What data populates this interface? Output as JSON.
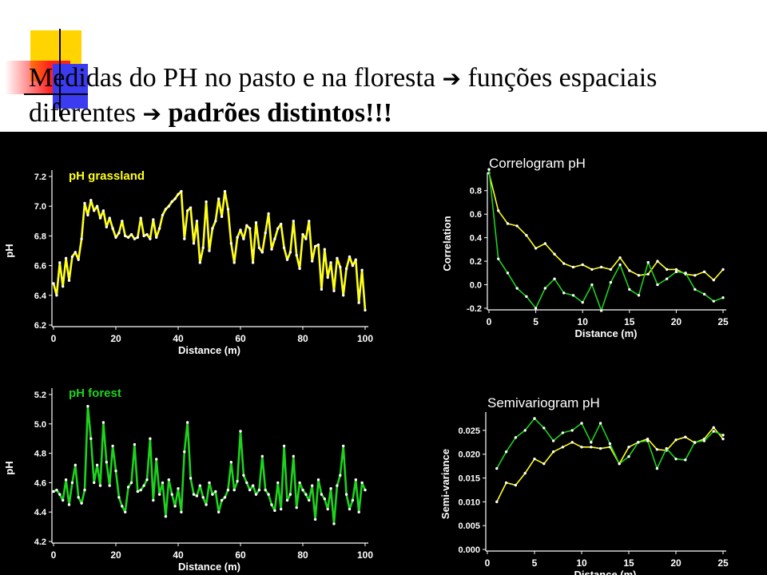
{
  "slide": {
    "title_part1": "Medidas do PH no pasto e na floresta",
    "arrow_glyph": "➔",
    "title_part2": "funções espaciais diferentes",
    "title_bold": "padrões distintos!!!"
  },
  "colors": {
    "grassland": "#ffff1e",
    "forest": "#1ed21e",
    "panel_background": "#000000",
    "axis": "#ffffff",
    "deco_yellow": "#ffd400",
    "deco_red": "#ff2020",
    "deco_blue": "#3b3bf0"
  },
  "chart_data": [
    {
      "id": "grassland",
      "type": "line",
      "title": "pH grassland",
      "xlabel": "Distance (m)",
      "ylabel": "pH",
      "xlim": [
        0,
        100
      ],
      "ylim": [
        6.2,
        7.2
      ],
      "xticks": [
        "0",
        "20",
        "40",
        "60",
        "80",
        "100"
      ],
      "yticks": [
        "6.2",
        "6.4",
        "6.6",
        "6.8",
        "7.0",
        "7.2"
      ],
      "grid": false,
      "series": [
        {
          "color": "#ffff1e",
          "x": [
            0,
            1,
            2,
            3,
            4,
            5,
            6,
            7,
            8,
            9,
            10,
            11,
            12,
            13,
            14,
            15,
            16,
            17,
            18,
            19,
            20,
            21,
            22,
            23,
            24,
            25,
            26,
            27,
            28,
            29,
            30,
            31,
            32,
            33,
            34,
            35,
            36,
            37,
            38,
            39,
            40,
            41,
            42,
            43,
            44,
            45,
            46,
            47,
            48,
            49,
            50,
            51,
            52,
            53,
            54,
            55,
            56,
            57,
            58,
            59,
            60,
            61,
            62,
            63,
            64,
            65,
            66,
            67,
            68,
            69,
            70,
            71,
            72,
            73,
            74,
            75,
            76,
            77,
            78,
            79,
            80,
            81,
            82,
            83,
            84,
            85,
            86,
            87,
            88,
            89,
            90,
            91,
            92,
            93,
            94,
            95,
            96,
            97,
            98,
            99,
            100
          ],
          "y": [
            6.48,
            6.4,
            6.62,
            6.46,
            6.65,
            6.5,
            6.66,
            6.69,
            6.64,
            6.78,
            7.02,
            6.94,
            7.04,
            6.97,
            7.0,
            6.92,
            6.97,
            6.86,
            6.92,
            6.85,
            6.79,
            6.82,
            6.9,
            6.8,
            6.79,
            6.81,
            6.78,
            6.79,
            6.92,
            6.8,
            6.81,
            6.78,
            6.91,
            6.79,
            6.85,
            6.94,
            6.98,
            7.0,
            7.03,
            7.05,
            7.08,
            7.1,
            6.78,
            6.97,
            6.99,
            6.75,
            6.9,
            6.62,
            6.72,
            7.03,
            6.7,
            6.85,
            6.9,
            7.05,
            6.93,
            7.1,
            6.98,
            6.75,
            6.62,
            6.79,
            6.84,
            6.78,
            6.87,
            6.85,
            6.62,
            6.89,
            6.72,
            6.69,
            6.82,
            6.95,
            6.71,
            6.78,
            6.85,
            6.88,
            6.72,
            6.64,
            6.69,
            6.9,
            6.67,
            6.58,
            6.81,
            6.78,
            6.9,
            6.63,
            6.73,
            6.74,
            6.44,
            6.71,
            6.52,
            6.62,
            6.43,
            6.65,
            6.59,
            6.4,
            6.58,
            6.66,
            6.6,
            6.64,
            6.35,
            6.57,
            6.3
          ]
        }
      ]
    },
    {
      "id": "forest",
      "type": "line",
      "title": "pH forest",
      "xlabel": "Distance (m)",
      "ylabel": "pH",
      "xlim": [
        0,
        100
      ],
      "ylim": [
        4.2,
        5.2
      ],
      "xticks": [
        "0",
        "20",
        "40",
        "60",
        "80",
        "100"
      ],
      "yticks": [
        "4.2",
        "4.4",
        "4.6",
        "4.8",
        "5.0",
        "5.2"
      ],
      "grid": false,
      "series": [
        {
          "color": "#1ed21e",
          "x": [
            0,
            1,
            2,
            3,
            4,
            5,
            6,
            7,
            8,
            9,
            10,
            11,
            12,
            13,
            14,
            15,
            16,
            17,
            18,
            19,
            20,
            21,
            22,
            23,
            24,
            25,
            26,
            27,
            28,
            29,
            30,
            31,
            32,
            33,
            34,
            35,
            36,
            37,
            38,
            39,
            40,
            41,
            42,
            43,
            44,
            45,
            46,
            47,
            48,
            49,
            50,
            51,
            52,
            53,
            54,
            55,
            56,
            57,
            58,
            59,
            60,
            61,
            62,
            63,
            64,
            65,
            66,
            67,
            68,
            69,
            70,
            71,
            72,
            73,
            74,
            75,
            76,
            77,
            78,
            79,
            80,
            81,
            82,
            83,
            84,
            85,
            86,
            87,
            88,
            89,
            90,
            91,
            92,
            93,
            94,
            95,
            96,
            97,
            98,
            99,
            100
          ],
          "y": [
            4.54,
            4.55,
            4.52,
            4.48,
            4.62,
            4.45,
            4.6,
            4.72,
            4.5,
            4.46,
            4.55,
            5.12,
            4.9,
            4.6,
            4.72,
            4.58,
            5.01,
            4.74,
            4.58,
            4.85,
            4.68,
            4.5,
            4.44,
            4.4,
            4.57,
            4.6,
            4.86,
            4.54,
            4.55,
            4.58,
            4.62,
            4.9,
            4.48,
            4.76,
            4.52,
            4.6,
            4.37,
            4.62,
            4.52,
            4.44,
            4.56,
            4.4,
            4.81,
            5.01,
            4.63,
            4.52,
            4.51,
            4.58,
            4.5,
            4.45,
            4.6,
            4.52,
            4.54,
            4.4,
            4.48,
            4.5,
            4.55,
            4.74,
            4.55,
            4.61,
            4.95,
            4.65,
            4.6,
            4.55,
            4.58,
            4.52,
            4.55,
            4.78,
            4.55,
            4.52,
            4.45,
            4.41,
            4.6,
            4.42,
            4.85,
            4.48,
            4.52,
            4.78,
            4.43,
            4.6,
            4.55,
            4.52,
            4.48,
            4.58,
            4.35,
            4.62,
            4.52,
            4.49,
            4.42,
            4.56,
            4.32,
            4.58,
            4.65,
            4.85,
            4.52,
            4.42,
            4.48,
            4.62,
            4.4,
            4.6,
            4.55
          ]
        }
      ]
    },
    {
      "id": "correlogram",
      "type": "line",
      "title": "Correlogram pH",
      "xlabel": "Distance (m)",
      "ylabel": "Correlation",
      "xlim": [
        0,
        25
      ],
      "ylim": [
        -0.2,
        0.9
      ],
      "xticks": [
        "0",
        "5",
        "10",
        "15",
        "20",
        "25"
      ],
      "yticks": [
        "-0.2",
        "0.0",
        "0.2",
        "0.4",
        "0.6",
        "0.8"
      ],
      "grid": false,
      "series": [
        {
          "color": "#ffff1e",
          "x": [
            0,
            1,
            2,
            3,
            4,
            5,
            6,
            7,
            8,
            9,
            10,
            11,
            12,
            13,
            14,
            15,
            16,
            17,
            18,
            19,
            20,
            21,
            22,
            23,
            24,
            25
          ],
          "y": [
            0.95,
            0.63,
            0.52,
            0.5,
            0.42,
            0.31,
            0.35,
            0.26,
            0.18,
            0.15,
            0.17,
            0.13,
            0.15,
            0.13,
            0.23,
            0.12,
            0.08,
            0.09,
            0.2,
            0.13,
            0.13,
            0.09,
            0.08,
            0.11,
            0.04,
            0.13
          ]
        },
        {
          "color": "#1ed21e",
          "x": [
            0,
            1,
            2,
            3,
            4,
            5,
            6,
            7,
            8,
            9,
            10,
            11,
            12,
            13,
            14,
            15,
            16,
            17,
            18,
            19,
            20,
            21,
            22,
            23,
            24,
            25
          ],
          "y": [
            0.98,
            0.22,
            0.1,
            -0.03,
            -0.1,
            -0.2,
            -0.03,
            0.05,
            -0.07,
            -0.09,
            -0.15,
            0.0,
            -0.22,
            0.02,
            0.17,
            -0.04,
            -0.09,
            0.19,
            0.0,
            0.05,
            0.11,
            0.1,
            -0.04,
            -0.08,
            -0.14,
            -0.11
          ]
        }
      ]
    },
    {
      "id": "semivariogram",
      "type": "line",
      "title": "Semivariogram pH",
      "xlabel": "Distance (m)",
      "ylabel": "Semi-variance",
      "xlim": [
        0,
        25
      ],
      "ylim": [
        0.0,
        0.0275
      ],
      "xticks": [
        "0",
        "5",
        "10",
        "15",
        "20",
        "25"
      ],
      "yticks": [
        "0.000",
        "0.005",
        "0.010",
        "0.015",
        "0.020",
        "0.025"
      ],
      "grid": false,
      "series": [
        {
          "color": "#ffff1e",
          "x": [
            1,
            2,
            3,
            4,
            5,
            6,
            7,
            8,
            9,
            10,
            11,
            12,
            13,
            14,
            15,
            16,
            17,
            18,
            19,
            20,
            21,
            22,
            23,
            24,
            25
          ],
          "y": [
            0.01,
            0.014,
            0.0135,
            0.016,
            0.019,
            0.018,
            0.0205,
            0.0215,
            0.0225,
            0.0215,
            0.0215,
            0.0212,
            0.0215,
            0.018,
            0.0215,
            0.0225,
            0.0232,
            0.021,
            0.0208,
            0.023,
            0.0236,
            0.0224,
            0.0232,
            0.0256,
            0.0232
          ]
        },
        {
          "color": "#1ed21e",
          "x": [
            1,
            2,
            3,
            4,
            5,
            6,
            7,
            8,
            9,
            10,
            11,
            12,
            13,
            14,
            15,
            16,
            17,
            18,
            19,
            20,
            21,
            22,
            23,
            24,
            25
          ],
          "y": [
            0.017,
            0.0205,
            0.0235,
            0.025,
            0.0275,
            0.0255,
            0.0228,
            0.0245,
            0.025,
            0.0265,
            0.0225,
            0.0265,
            0.0222,
            0.018,
            0.0195,
            0.0225,
            0.0228,
            0.017,
            0.0212,
            0.019,
            0.0188,
            0.0225,
            0.0228,
            0.0248,
            0.024
          ]
        }
      ]
    }
  ]
}
